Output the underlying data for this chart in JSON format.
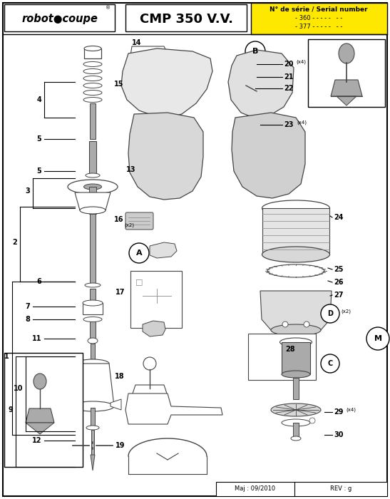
{
  "title": "CMP 350 V.V.",
  "brand": "robot●coupe",
  "serial_line1": "N° de série / Serial number",
  "serial_line2": "- 360 - - - - -   - -",
  "serial_line3": "- 377 - - - - -   - -",
  "footer_left": "Maj : 09/2010",
  "footer_right": "REV : g",
  "bg_color": "#ffffff",
  "yellow": "#FFE800",
  "dgray": "#444444",
  "lgray": "#aaaaaa",
  "mgray": "#888888"
}
